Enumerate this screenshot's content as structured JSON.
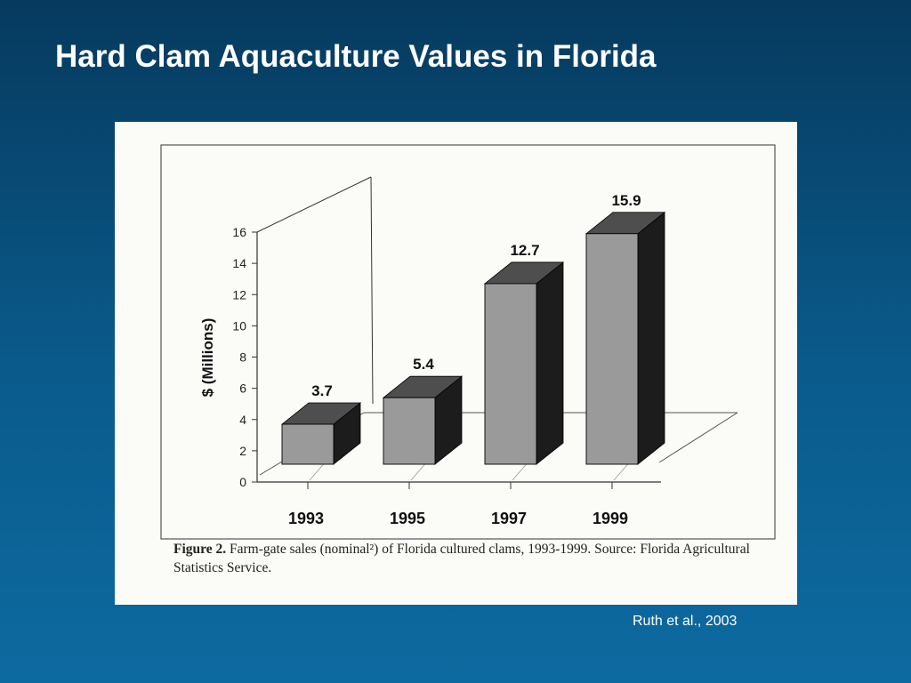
{
  "slide": {
    "title": "Hard Clam Aquaculture Values in Florida",
    "credit": "Ruth et al., 2003"
  },
  "figure": {
    "caption_label": "Figure 2.",
    "caption_text": "Farm-gate sales (nominal²) of Florida cultured clams, 1993-1999. Source: Florida Agricultural Statistics Service."
  },
  "colors": {
    "background_top": "#063a5e",
    "background_bottom": "#0d6aa0",
    "bar_front": "#9a9a9a",
    "bar_top": "#4e4e4e",
    "bar_side": "#1c1c1c"
  },
  "chart_data": {
    "type": "bar",
    "categories": [
      "1993",
      "1995",
      "1997",
      "1999"
    ],
    "values": [
      3.7,
      5.4,
      12.7,
      15.9
    ],
    "value_labels": [
      "3.7",
      "5.4",
      "12.7",
      "15.9"
    ],
    "ylabel": "$ (Millions)",
    "xlabel": "",
    "title": "",
    "ylim": [
      0,
      16
    ],
    "yticks": [
      "0",
      "2",
      "4",
      "6",
      "8",
      "10",
      "12",
      "14",
      "16"
    ],
    "style": "3d",
    "grid": false
  }
}
